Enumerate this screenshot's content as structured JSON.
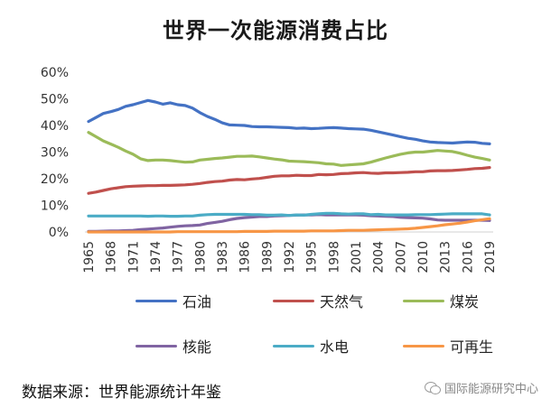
{
  "chart_data": {
    "type": "line",
    "title": "世界一次能源消费占比",
    "xlabel": "",
    "ylabel": "",
    "ylim": [
      0,
      60
    ],
    "yticks": [
      "0%",
      "10%",
      "20%",
      "30%",
      "40%",
      "50%",
      "60%"
    ],
    "xticks": [
      "1965",
      "1968",
      "1971",
      "1974",
      "1977",
      "1980",
      "1983",
      "1986",
      "1989",
      "1992",
      "1995",
      "1998",
      "2001",
      "2004",
      "2007",
      "2010",
      "2013",
      "2016",
      "2019"
    ],
    "x": [
      1965,
      1966,
      1967,
      1968,
      1969,
      1970,
      1971,
      1972,
      1973,
      1974,
      1975,
      1976,
      1977,
      1978,
      1979,
      1980,
      1981,
      1982,
      1983,
      1984,
      1985,
      1986,
      1987,
      1988,
      1989,
      1990,
      1991,
      1992,
      1993,
      1994,
      1995,
      1996,
      1997,
      1998,
      1999,
      2000,
      2001,
      2002,
      2003,
      2004,
      2005,
      2006,
      2007,
      2008,
      2009,
      2010,
      2011,
      2012,
      2013,
      2014,
      2015,
      2016,
      2017,
      2018,
      2019
    ],
    "grid": false,
    "legend_position": "bottom",
    "series": [
      {
        "name": "石油",
        "color": "#4472c4",
        "values": [
          41.5,
          43,
          44.5,
          45.2,
          46,
          47.2,
          47.8,
          48.6,
          49.4,
          48.8,
          48,
          48.5,
          47.8,
          47.5,
          46.5,
          44.8,
          43.4,
          42.3,
          41,
          40.2,
          40.1,
          40,
          39.6,
          39.5,
          39.5,
          39.4,
          39.3,
          39.2,
          38.9,
          39,
          38.8,
          38.9,
          39.1,
          39.2,
          39,
          38.8,
          38.7,
          38.6,
          38.2,
          37.6,
          37,
          36.4,
          35.8,
          35.2,
          34.8,
          34.2,
          33.8,
          33.6,
          33.5,
          33.4,
          33.6,
          33.8,
          33.7,
          33.3,
          33.1
        ]
      },
      {
        "name": "天然气",
        "color": "#c0504d",
        "values": [
          14.5,
          15,
          15.6,
          16.2,
          16.6,
          17,
          17.2,
          17.3,
          17.4,
          17.4,
          17.5,
          17.5,
          17.6,
          17.7,
          17.9,
          18.2,
          18.6,
          18.9,
          19.1,
          19.5,
          19.7,
          19.6,
          19.9,
          20.1,
          20.5,
          20.9,
          21.1,
          21.1,
          21.3,
          21.2,
          21.2,
          21.6,
          21.5,
          21.6,
          21.9,
          22,
          22.2,
          22.3,
          22.1,
          22,
          22.2,
          22.2,
          22.3,
          22.4,
          22.6,
          22.6,
          22.9,
          23,
          23,
          23.1,
          23.3,
          23.5,
          23.8,
          23.9,
          24.2
        ]
      },
      {
        "name": "煤炭",
        "color": "#9bbb59",
        "values": [
          37.4,
          35.8,
          34.2,
          33,
          31.8,
          30.4,
          29.2,
          27.5,
          26.8,
          27,
          27,
          26.8,
          26.5,
          26.2,
          26.3,
          27,
          27.3,
          27.6,
          27.8,
          28.1,
          28.4,
          28.4,
          28.5,
          28.2,
          27.8,
          27.4,
          27.1,
          26.6,
          26.5,
          26.4,
          26.2,
          26,
          25.6,
          25.5,
          25,
          25.2,
          25.4,
          25.6,
          26.2,
          27,
          27.8,
          28.5,
          29.2,
          29.7,
          30,
          30,
          30.3,
          30.6,
          30.4,
          30.2,
          29.6,
          28.8,
          28.1,
          27.6,
          27
        ]
      },
      {
        "name": "核能",
        "color": "#8064a2",
        "values": [
          0.2,
          0.2,
          0.3,
          0.4,
          0.4,
          0.5,
          0.6,
          0.9,
          1.1,
          1.3,
          1.5,
          1.8,
          2.1,
          2.3,
          2.4,
          2.6,
          3.2,
          3.6,
          4,
          4.6,
          5.1,
          5.4,
          5.6,
          5.8,
          5.8,
          6,
          6.1,
          6.2,
          6.3,
          6.4,
          6.4,
          6.5,
          6.4,
          6.4,
          6.4,
          6.4,
          6.4,
          6.3,
          6.1,
          6,
          5.9,
          5.8,
          5.5,
          5.4,
          5.3,
          5.2,
          4.9,
          4.5,
          4.4,
          4.4,
          4.4,
          4.4,
          4.4,
          4.4,
          4.3
        ]
      },
      {
        "name": "水电",
        "color": "#4bacc6",
        "values": [
          6,
          6,
          6,
          6,
          6,
          6,
          6,
          6,
          5.9,
          6,
          6,
          5.9,
          5.9,
          6,
          6,
          6.3,
          6.5,
          6.6,
          6.6,
          6.6,
          6.6,
          6.6,
          6.5,
          6.5,
          6.3,
          6.3,
          6.4,
          6.2,
          6.4,
          6.3,
          6.6,
          6.8,
          7,
          7,
          6.8,
          6.7,
          6.8,
          6.8,
          6.5,
          6.6,
          6.4,
          6.4,
          6.4,
          6.4,
          6.5,
          6.5,
          6.5,
          6.6,
          6.7,
          6.8,
          6.8,
          6.8,
          6.8,
          6.8,
          6.4
        ]
      },
      {
        "name": "可再生",
        "color": "#f79646",
        "values": [
          0,
          0,
          0,
          0,
          0,
          0,
          0,
          0,
          0,
          0,
          0,
          0,
          0.1,
          0.1,
          0.1,
          0.1,
          0.1,
          0.1,
          0.1,
          0.1,
          0.1,
          0.2,
          0.2,
          0.2,
          0.2,
          0.3,
          0.3,
          0.3,
          0.3,
          0.3,
          0.4,
          0.4,
          0.4,
          0.4,
          0.5,
          0.6,
          0.6,
          0.6,
          0.7,
          0.8,
          0.9,
          1,
          1.1,
          1.2,
          1.4,
          1.7,
          2,
          2.3,
          2.7,
          3,
          3.3,
          3.7,
          4.2,
          4.6,
          5
        ]
      }
    ]
  },
  "source": "数据来源：世界能源统计年鉴",
  "watermark": "国际能源研究中心",
  "watermark_icon": "wechat-icon"
}
